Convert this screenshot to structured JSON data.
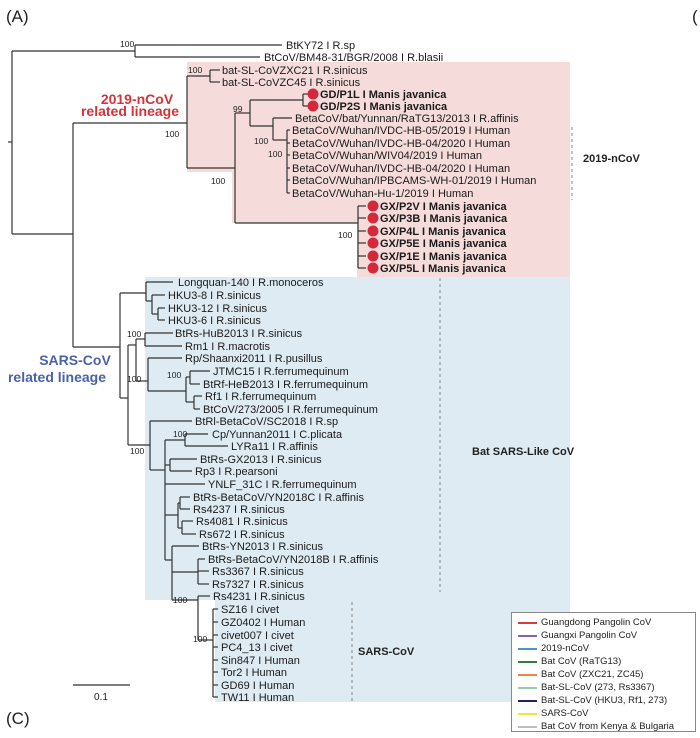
{
  "panels": {
    "a": "(A)",
    "c": "(C)",
    "b_partial": "("
  },
  "lineages": {
    "ncov": {
      "line1": "2019-nCoV",
      "line2": "related lineage",
      "color": "#d2343a"
    },
    "sars": {
      "line1": "SARS-CoV",
      "line2": "related lineage",
      "color": "#4a63a8"
    }
  },
  "clade_labels": {
    "ncov": "2019-nCoV",
    "bat_sl": "Bat SARS-Like CoV",
    "sars": "SARS-CoV"
  },
  "scale_bar": "0.1",
  "leaves": [
    "BtKY72 I R.sp",
    "BtCoV/BM48-31/BGR/2008 I R.blasii",
    "bat-SL-CoVZXC21 I R.sinicus",
    "bat-SL-CoVZC45 I R.sinicus",
    "GD/P1L I Manis javanica",
    "GD/P2S I Manis javanica",
    "BetaCoV/bat/Yunnan/RaTG13/2013 I R.affinis",
    "BetaCoV/Wuhan/IVDC-HB-05/2019 I Human",
    "BetaCoV/Wuhan/IVDC-HB-04/2020 I Human",
    "BetaCoV/Wuhan/WIV04/2019 I Human",
    "BetaCoV/Wuhan/IVDC-HB-04/2020 I Human",
    "BetaCoV/Wuhan/IPBCAMS-WH-01/2019 I Human",
    "BetaCoV/Wuhan-Hu-1/2019 I Human",
    "GX/P2V I Manis javanica",
    "GX/P3B I Manis javanica",
    "GX/P4L I Manis javanica",
    "GX/P5E I Manis javanica",
    "GX/P1E I Manis javanica",
    "GX/P5L I Manis javanica",
    "Longquan-140 I R.monoceros",
    "HKU3-8 I R.sinicus",
    "HKU3-12 I R.sinicus",
    "HKU3-6 I R.sinicus",
    "BtRs-HuB2013 I R.sinicus",
    "Rm1 I R.macrotis",
    "Rp/Shaanxi2011 I R.pusillus",
    "JTMC15 I R.ferrumequinum",
    "BtRf-HeB2013 I R.ferrumequinum",
    "Rf1 I R.ferrumequinum",
    "BtCoV/273/2005 I R.ferrumequinum",
    "BtRl-BetaCoV/SC2018 I R.sp",
    "Cp/Yunnan2011 I C.plicata",
    "LYRa11 I R.affinis",
    "BtRs-GX2013 I R.sinicus",
    "Rp3 I R.pearsoni",
    "YNLF_31C I R.ferrumequinum",
    "BtRs-BetaCoV/YN2018C I R.affinis",
    "Rs4237 I R.sinicus",
    "Rs4081 I R.sinicus",
    "Rs672 I R.sinicus",
    "BtRs-YN2013 I R.sinicus",
    "BtRs-BetaCoV/YN2018B I R.affinis",
    "Rs3367 I R.sinicus",
    "Rs7327 I R.sinicus",
    "Rs4231 I R.sinicus",
    "SZ16 I civet",
    "GZ0402 I Human",
    "civet007 I civet",
    "PC4_13 I civet",
    "Sin847 I Human",
    "Tor2 I Human",
    "GD69 I Human",
    "TW11 I Human"
  ],
  "bootstrap": [
    "100",
    "100",
    "100",
    "99",
    "100",
    "100",
    "100",
    "100",
    "100",
    "100",
    "100",
    "100",
    "100",
    "100",
    "100"
  ],
  "colors": {
    "ncov_box": "#f5dcdb",
    "sars_box": "#deebf3",
    "pangolin_dot": "#d3293a"
  },
  "legend": [
    {
      "label": "Guangdong Pangolin CoV",
      "color": "#d93a3a"
    },
    {
      "label": "Guangxi Pangolin CoV",
      "color": "#8a5fb0"
    },
    {
      "label": "2019-nCoV",
      "color": "#4f94d0"
    },
    {
      "label": "Bat CoV (RaTG13)",
      "color": "#2e7d3a"
    },
    {
      "label": "Bat CoV (ZXC21, ZC45)",
      "color": "#ef8540"
    },
    {
      "label": "Bat-SL-CoV (273, Rs3367)",
      "color": "#8fd0a8"
    },
    {
      "label": "Bat-SL-CoV (HKU3, Rf1, 273)",
      "color": "#1f1f66"
    },
    {
      "label": "SARS-CoV",
      "color": "#f2e53a"
    },
    {
      "label": "Bat CoV from Kenya & Bulgaria",
      "color": "#bdbdbd"
    }
  ]
}
